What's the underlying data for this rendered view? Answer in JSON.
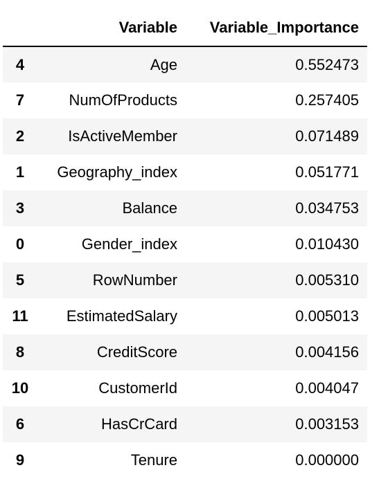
{
  "table": {
    "columns": {
      "index": "",
      "variable": "Variable",
      "importance": "Variable_Importance"
    },
    "rows": [
      {
        "index": "4",
        "variable": "Age",
        "importance": "0.552473"
      },
      {
        "index": "7",
        "variable": "NumOfProducts",
        "importance": "0.257405"
      },
      {
        "index": "2",
        "variable": "IsActiveMember",
        "importance": "0.071489"
      },
      {
        "index": "1",
        "variable": "Geography_index",
        "importance": "0.051771"
      },
      {
        "index": "3",
        "variable": "Balance",
        "importance": "0.034753"
      },
      {
        "index": "0",
        "variable": "Gender_index",
        "importance": "0.010430"
      },
      {
        "index": "5",
        "variable": "RowNumber",
        "importance": "0.005310"
      },
      {
        "index": "11",
        "variable": "EstimatedSalary",
        "importance": "0.005013"
      },
      {
        "index": "8",
        "variable": "CreditScore",
        "importance": "0.004156"
      },
      {
        "index": "10",
        "variable": "CustomerId",
        "importance": "0.004047"
      },
      {
        "index": "6",
        "variable": "HasCrCard",
        "importance": "0.003153"
      },
      {
        "index": "9",
        "variable": "Tenure",
        "importance": "0.000000"
      }
    ]
  }
}
